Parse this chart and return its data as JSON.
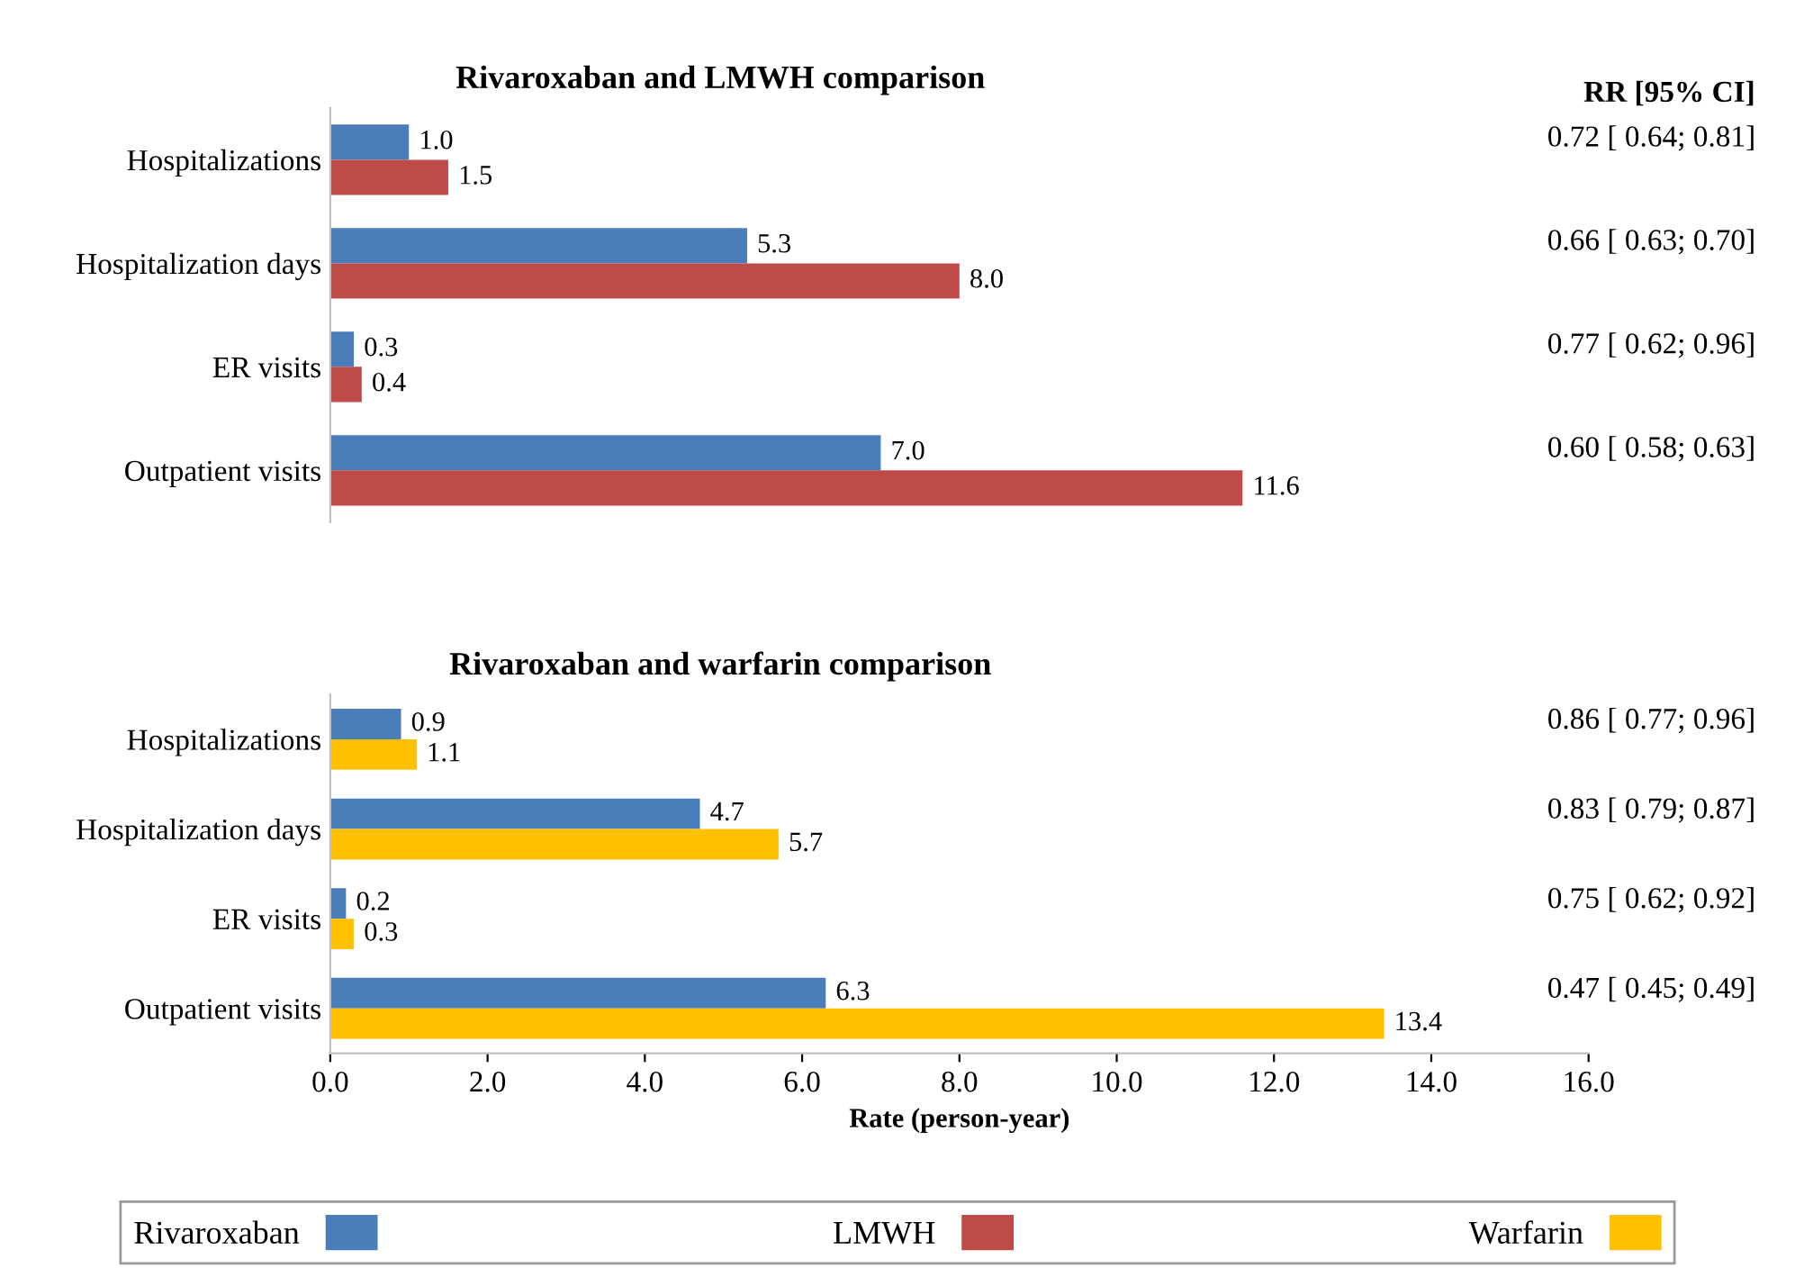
{
  "chart_data": [
    {
      "type": "bar",
      "orientation": "horizontal",
      "title": "Rivaroxaban and LMWH comparison",
      "categories": [
        "Hospitalizations",
        "Hospitalization days",
        "ER visits",
        "Outpatient visits"
      ],
      "series": [
        {
          "name": "Rivaroxaban",
          "color": "#4a7ebb",
          "values": [
            1.0,
            5.3,
            0.3,
            7.0
          ],
          "value_labels": [
            "1.0",
            "5.3",
            "0.3",
            "7.0"
          ]
        },
        {
          "name": "LMWH",
          "color": "#be4b48",
          "values": [
            1.5,
            8.0,
            0.4,
            11.6
          ],
          "value_labels": [
            "1.5",
            "8.0",
            "0.4",
            "11.6"
          ]
        }
      ],
      "xlim": [
        0,
        16
      ],
      "tick_labels": "y",
      "legend": "bottom",
      "annotations": [
        "RR [95% CI]",
        "0.72 [ 0.64; 0.81]",
        "0.66 [ 0.63; 0.70]",
        "0.77 [ 0.62; 0.96]",
        "0.60 [ 0.58; 0.63]"
      ]
    },
    {
      "type": "bar",
      "orientation": "horizontal",
      "title": "Rivaroxaban and warfarin comparison",
      "categories": [
        "Hospitalizations",
        "Hospitalization days",
        "ER visits",
        "Outpatient visits"
      ],
      "series": [
        {
          "name": "Rivaroxaban",
          "color": "#4a7ebb",
          "values": [
            0.9,
            4.7,
            0.2,
            6.3
          ]
        },
        {
          "name": "Warfarin",
          "color": "#ffc000",
          "values": [
            1.1,
            5.7,
            0.3,
            13.4
          ]
        }
      ],
      "xlim": [
        0,
        16
      ],
      "xticks": [
        {
          "value": 0,
          "label": "0.0"
        },
        {
          "value": 2,
          "label": "2.0"
        },
        {
          "value": 4,
          "label": "4.0"
        },
        {
          "value": 6,
          "label": "6.0"
        },
        {
          "value": 8,
          "label": "8.0"
        },
        {
          "value": 10,
          "label": "10.0"
        },
        {
          "value": 12,
          "label": "12.0"
        },
        {
          "value": 14,
          "label": "14.0"
        },
        {
          "value": 16,
          "label": "16.0"
        }
      ],
      "xlabel": "Rate (person-year)",
      "data_labels": true,
      "legend": "bottom",
      "annotations": [
        "0.86 [ 0.77; 0.96]",
        "0.83 [ 0.79; 0.87]",
        "0.75 [ 0.62; 0.92]",
        "0.47 [ 0.45; 0.49]"
      ]
    }
  ]
}
